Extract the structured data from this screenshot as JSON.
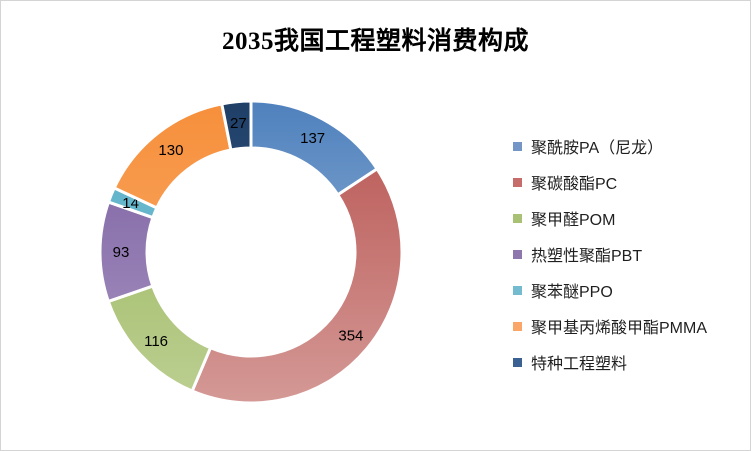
{
  "chart_data": {
    "type": "donut",
    "title": "2035我国工程塑料消费构成",
    "legend_position": "right",
    "direction": "clockwise",
    "start_angle_deg": 0,
    "hole_ratio": 0.69,
    "total": 871,
    "data_labels_shown": true,
    "gap_color": "#ffffff",
    "frame_border_color": "#d4d4d4",
    "categories": [
      "聚酰胺PA（尼龙）",
      "聚碳酸酯PC",
      "聚甲醛POM",
      "热塑性聚酯PBT",
      "聚苯醚PPO",
      "聚甲基丙烯酸甲酯PMMA",
      "特种工程塑料"
    ],
    "values": [
      137,
      354,
      116,
      93,
      14,
      130,
      27
    ],
    "colors": [
      "#4f81bd",
      "#c0504d",
      "#9bbb59",
      "#8064a2",
      "#4bacc6",
      "#f79646",
      "#2c4d75"
    ],
    "colors_gradient": [
      {
        "dark": "#4f81bd",
        "light": "#a7c0dd"
      },
      {
        "dark": "#b85350",
        "light": "#d49996"
      },
      {
        "dark": "#94b252",
        "light": "#bccf92"
      },
      {
        "dark": "#7a5da0",
        "light": "#a795c1"
      },
      {
        "dark": "#55afc8",
        "light": "#85c3d4"
      },
      {
        "dark": "#f68f3b",
        "light": "#fab172"
      },
      {
        "dark": "#1f3f67",
        "light": "#3f6695"
      }
    ],
    "legend_swatch_colors": [
      "#7396c6",
      "#c66d6b",
      "#a9c175",
      "#8d77ad",
      "#74bbcf",
      "#f9a668",
      "#3a6191"
    ]
  }
}
